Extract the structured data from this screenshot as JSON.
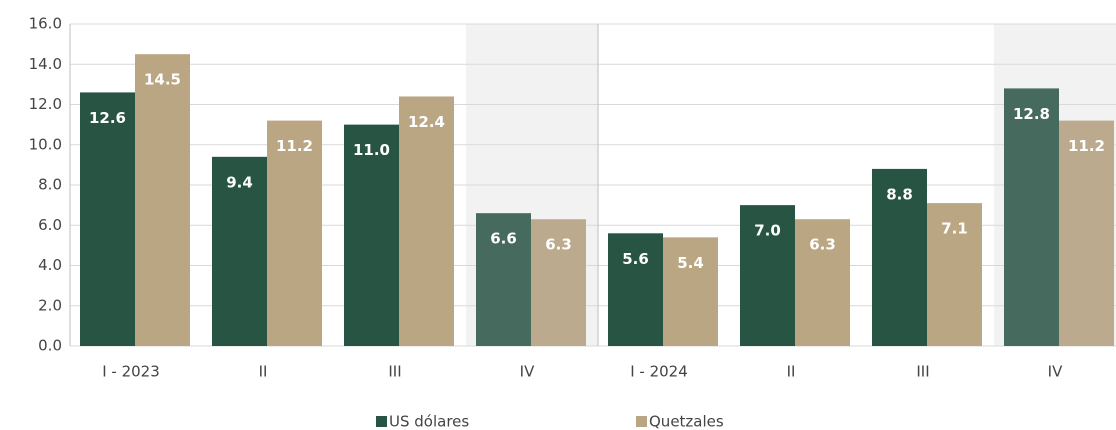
{
  "chart_data": {
    "type": "bar",
    "categories": [
      "I - 2023",
      "II",
      "III",
      "IV",
      "I - 2024",
      "II",
      "III",
      "IV"
    ],
    "series": [
      {
        "name": "US dólares",
        "color": "#275443",
        "highlight_color": "#476a5e",
        "values": [
          12.6,
          9.4,
          11.0,
          6.6,
          5.6,
          7.0,
          8.8,
          12.8
        ],
        "value_labels": [
          "12.6",
          "9.4",
          "11.0",
          "6.6",
          "5.6",
          "7.0",
          "8.8",
          "12.8"
        ]
      },
      {
        "name": "Quetzales",
        "color": "#bba684",
        "highlight_color": "#bcaa8f",
        "values": [
          14.5,
          11.2,
          12.4,
          6.3,
          5.4,
          6.3,
          7.1,
          11.2
        ],
        "value_labels": [
          "14.5",
          "11.2",
          "12.4",
          "6.3",
          "5.4",
          "6.3",
          "7.1",
          "11.2"
        ]
      }
    ],
    "highlight_categories": [
      3,
      7
    ],
    "ylim": [
      0,
      16
    ],
    "yticks": [
      {
        "value": 0,
        "label": "0.0"
      },
      {
        "value": 2,
        "label": "2.0"
      },
      {
        "value": 4,
        "label": "4.0"
      },
      {
        "value": 6,
        "label": "6.0"
      },
      {
        "value": 8,
        "label": "8.0"
      },
      {
        "value": 10,
        "label": "10.0"
      },
      {
        "value": 12,
        "label": "12.0"
      },
      {
        "value": 14,
        "label": "14.0"
      },
      {
        "value": 16,
        "label": "16.0"
      }
    ],
    "grid": true,
    "legend": "bottom"
  }
}
